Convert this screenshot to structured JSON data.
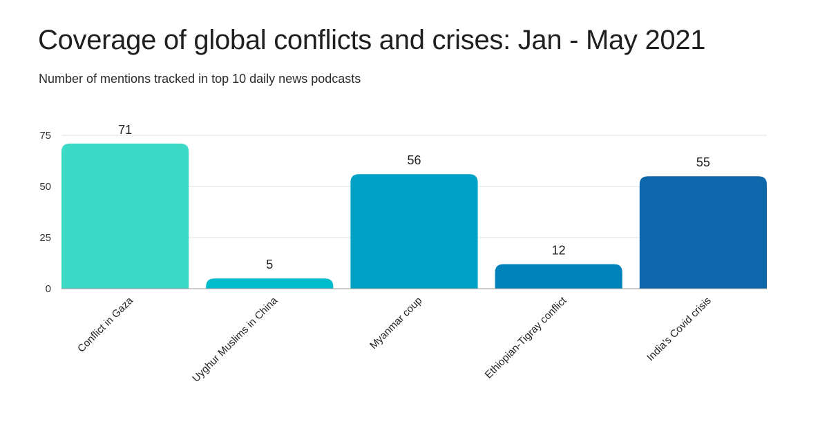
{
  "chart_data": {
    "type": "bar",
    "title": "Coverage of global conflicts and crises: Jan - May 2021",
    "subtitle": "Number of mentions tracked in top 10 daily news podcasts",
    "xlabel": "",
    "ylabel": "",
    "categories": [
      "Conflict in Gaza",
      "Uyghur Muslims in China",
      "Myanmar coup",
      "Ethiopian-Tigray conflict",
      "India's Covid crisis"
    ],
    "values": [
      71,
      5,
      56,
      12,
      55
    ],
    "colors": [
      "#3bd9c6",
      "#00bccb",
      "#00a1c7",
      "#0083bb",
      "#0e66ab"
    ],
    "ylim": [
      0,
      75
    ],
    "yticks": [
      0,
      25,
      50,
      75
    ],
    "grid": true,
    "legend": "none",
    "data_labels": true
  }
}
